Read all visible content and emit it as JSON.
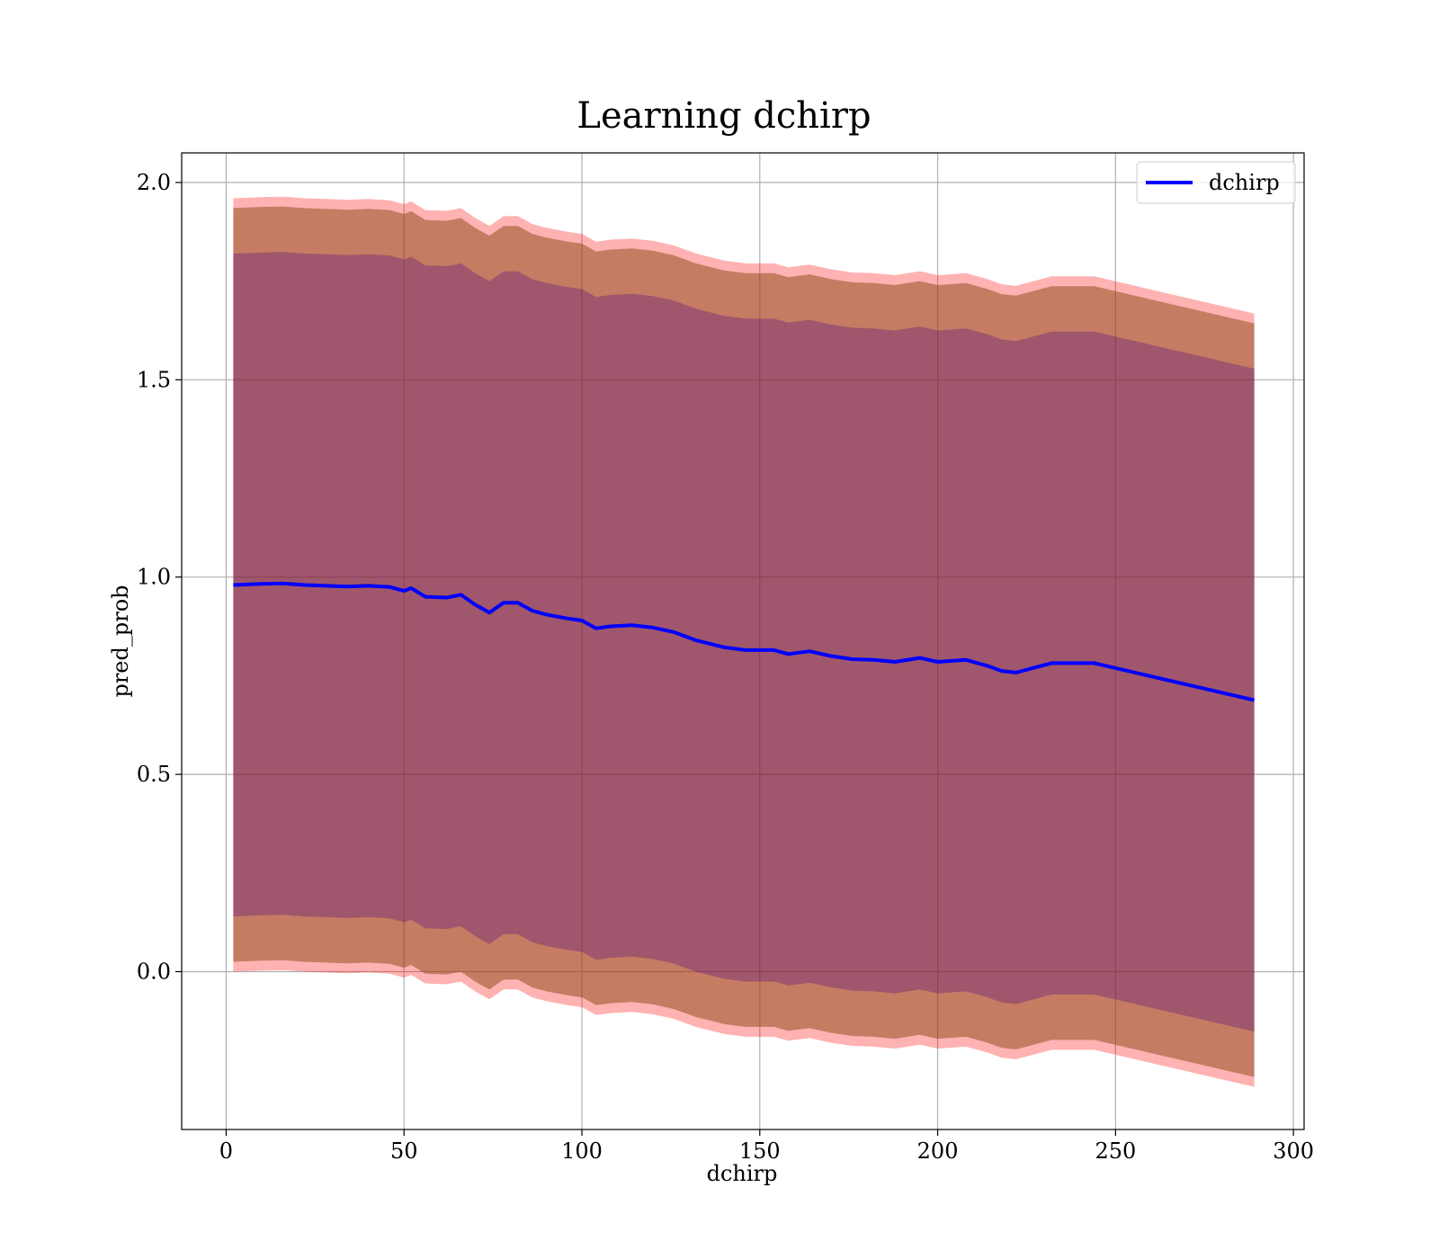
{
  "chart_data": {
    "type": "line",
    "title": "Learning dchirp",
    "xlabel": "dchirp",
    "ylabel": "pred_prob",
    "xlim": [
      -12.5,
      303
    ],
    "ylim": [
      -0.4,
      2.075
    ],
    "xticks": [
      0,
      50,
      100,
      150,
      200,
      250,
      300
    ],
    "yticks": [
      0.0,
      0.5,
      1.0,
      1.5,
      2.0
    ],
    "xtick_labels": [
      "0",
      "50",
      "100",
      "150",
      "200",
      "250",
      "300"
    ],
    "ytick_labels": [
      "0.0",
      "0.5",
      "1.0",
      "1.5",
      "2.0"
    ],
    "grid": true,
    "legend": {
      "position": "top-right",
      "entries": [
        "dchirp"
      ]
    },
    "colors": {
      "line": "#0000ff",
      "band_outer": "#ff0000",
      "band_middle": "#8b4513",
      "band_inner": "#4b0082",
      "grid": "#b0b0b0"
    },
    "series": [
      {
        "name": "dchirp",
        "x": [
          2,
          10,
          16,
          22,
          28,
          34,
          40,
          46,
          50,
          52,
          56,
          62,
          66,
          70,
          74,
          78,
          82,
          86,
          90,
          96,
          100,
          104,
          108,
          114,
          120,
          126,
          132,
          140,
          146,
          154,
          158,
          164,
          170,
          176,
          182,
          188,
          195,
          200,
          208,
          214,
          218,
          222,
          232,
          244,
          289
        ],
        "y": [
          0.98,
          0.983,
          0.984,
          0.98,
          0.978,
          0.976,
          0.978,
          0.975,
          0.965,
          0.972,
          0.95,
          0.948,
          0.955,
          0.93,
          0.91,
          0.935,
          0.935,
          0.915,
          0.905,
          0.895,
          0.89,
          0.87,
          0.875,
          0.878,
          0.872,
          0.86,
          0.84,
          0.822,
          0.815,
          0.815,
          0.805,
          0.812,
          0.8,
          0.792,
          0.79,
          0.785,
          0.795,
          0.785,
          0.79,
          0.775,
          0.762,
          0.758,
          0.782,
          0.782,
          0.688
        ],
        "band_inner": {
          "upper": [
            1.82,
            1.822,
            1.824,
            1.82,
            1.818,
            1.816,
            1.818,
            1.815,
            1.805,
            1.812,
            1.79,
            1.788,
            1.795,
            1.77,
            1.75,
            1.775,
            1.775,
            1.755,
            1.745,
            1.735,
            1.73,
            1.71,
            1.715,
            1.718,
            1.712,
            1.7,
            1.68,
            1.662,
            1.655,
            1.655,
            1.645,
            1.652,
            1.64,
            1.632,
            1.63,
            1.625,
            1.635,
            1.625,
            1.63,
            1.615,
            1.602,
            1.598,
            1.622,
            1.622,
            1.528
          ],
          "lower": [
            0.14,
            0.143,
            0.144,
            0.14,
            0.138,
            0.136,
            0.138,
            0.135,
            0.125,
            0.132,
            0.11,
            0.108,
            0.115,
            0.09,
            0.07,
            0.095,
            0.095,
            0.075,
            0.065,
            0.055,
            0.05,
            0.03,
            0.035,
            0.038,
            0.032,
            0.02,
            0.0,
            -0.018,
            -0.025,
            -0.025,
            -0.035,
            -0.028,
            -0.04,
            -0.048,
            -0.05,
            -0.055,
            -0.045,
            -0.055,
            -0.05,
            -0.065,
            -0.078,
            -0.082,
            -0.058,
            -0.058,
            -0.152
          ]
        },
        "band_middle": {
          "upper": [
            1.935,
            1.938,
            1.939,
            1.935,
            1.933,
            1.931,
            1.933,
            1.93,
            1.92,
            1.927,
            1.905,
            1.903,
            1.91,
            1.885,
            1.865,
            1.89,
            1.89,
            1.87,
            1.86,
            1.85,
            1.845,
            1.825,
            1.83,
            1.833,
            1.827,
            1.815,
            1.795,
            1.777,
            1.77,
            1.77,
            1.76,
            1.767,
            1.755,
            1.747,
            1.745,
            1.74,
            1.75,
            1.74,
            1.745,
            1.73,
            1.717,
            1.713,
            1.737,
            1.737,
            1.643
          ],
          "lower": [
            0.025,
            0.028,
            0.029,
            0.025,
            0.023,
            0.021,
            0.023,
            0.02,
            0.01,
            0.017,
            -0.005,
            -0.007,
            0.0,
            -0.025,
            -0.045,
            -0.02,
            -0.02,
            -0.04,
            -0.05,
            -0.06,
            -0.065,
            -0.085,
            -0.08,
            -0.077,
            -0.083,
            -0.095,
            -0.115,
            -0.133,
            -0.14,
            -0.14,
            -0.15,
            -0.143,
            -0.155,
            -0.163,
            -0.165,
            -0.17,
            -0.16,
            -0.17,
            -0.165,
            -0.18,
            -0.193,
            -0.197,
            -0.173,
            -0.173,
            -0.267
          ]
        },
        "band_outer": {
          "upper": [
            1.96,
            1.963,
            1.964,
            1.96,
            1.958,
            1.956,
            1.958,
            1.955,
            1.945,
            1.952,
            1.93,
            1.928,
            1.935,
            1.91,
            1.89,
            1.915,
            1.915,
            1.895,
            1.885,
            1.875,
            1.87,
            1.85,
            1.855,
            1.858,
            1.852,
            1.84,
            1.82,
            1.802,
            1.795,
            1.795,
            1.785,
            1.792,
            1.78,
            1.772,
            1.77,
            1.765,
            1.775,
            1.765,
            1.77,
            1.755,
            1.742,
            1.738,
            1.762,
            1.762,
            1.668
          ],
          "lower": [
            0.0,
            0.003,
            0.004,
            0.0,
            -0.002,
            -0.004,
            -0.002,
            -0.005,
            -0.015,
            -0.008,
            -0.03,
            -0.032,
            -0.025,
            -0.05,
            -0.07,
            -0.045,
            -0.045,
            -0.065,
            -0.075,
            -0.085,
            -0.09,
            -0.11,
            -0.105,
            -0.102,
            -0.108,
            -0.12,
            -0.14,
            -0.158,
            -0.165,
            -0.165,
            -0.175,
            -0.168,
            -0.18,
            -0.188,
            -0.19,
            -0.195,
            -0.185,
            -0.195,
            -0.19,
            -0.205,
            -0.218,
            -0.222,
            -0.198,
            -0.198,
            -0.292
          ]
        }
      }
    ]
  }
}
